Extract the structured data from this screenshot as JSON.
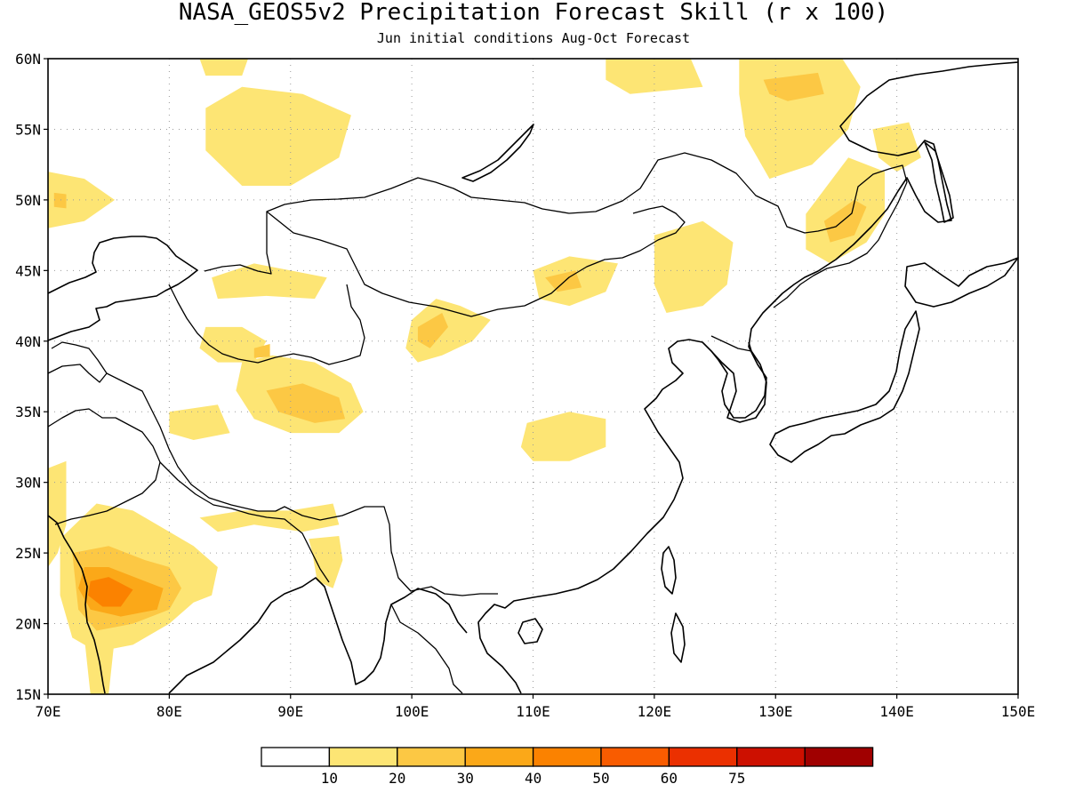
{
  "title": "NASA_GEOS5v2 Precipitation Forecast Skill (r x 100)",
  "subtitle": "Jun initial conditions  Aug-Oct Forecast",
  "map": {
    "lon_range": [
      70,
      150
    ],
    "lat_range": [
      15,
      60
    ],
    "lon_ticks": [
      {
        "value": 70,
        "label": "70E"
      },
      {
        "value": 80,
        "label": "80E"
      },
      {
        "value": 90,
        "label": "90E"
      },
      {
        "value": 100,
        "label": "100E"
      },
      {
        "value": 110,
        "label": "110E"
      },
      {
        "value": 120,
        "label": "120E"
      },
      {
        "value": 130,
        "label": "130E"
      },
      {
        "value": 140,
        "label": "140E"
      },
      {
        "value": 150,
        "label": "150E"
      }
    ],
    "lat_ticks": [
      {
        "value": 15,
        "label": "15N"
      },
      {
        "value": 20,
        "label": "20N"
      },
      {
        "value": 25,
        "label": "25N"
      },
      {
        "value": 30,
        "label": "30N"
      },
      {
        "value": 35,
        "label": "35N"
      },
      {
        "value": 40,
        "label": "40N"
      },
      {
        "value": 45,
        "label": "45N"
      },
      {
        "value": 50,
        "label": "50N"
      },
      {
        "value": 55,
        "label": "55N"
      },
      {
        "value": 60,
        "label": "60N"
      }
    ],
    "grid": true,
    "skill_regions": [
      {
        "name": "central-india",
        "level": 10,
        "ring": [
          [
            71,
            26
          ],
          [
            74,
            28.5
          ],
          [
            77,
            28
          ],
          [
            79,
            27
          ],
          [
            82,
            25.5
          ],
          [
            84,
            24
          ],
          [
            83.5,
            22
          ],
          [
            82,
            21.5
          ],
          [
            80,
            20
          ],
          [
            77,
            18.5
          ],
          [
            74,
            18
          ],
          [
            72,
            19
          ],
          [
            71,
            22
          ]
        ]
      },
      {
        "name": "central-india",
        "level": 20,
        "ring": [
          [
            72,
            25
          ],
          [
            75,
            25.5
          ],
          [
            78,
            24.5
          ],
          [
            80,
            24
          ],
          [
            81,
            22.5
          ],
          [
            80,
            21
          ],
          [
            77,
            20
          ],
          [
            74,
            19.5
          ],
          [
            72.5,
            21
          ]
        ]
      },
      {
        "name": "central-india",
        "level": 30,
        "ring": [
          [
            73,
            24
          ],
          [
            75,
            24
          ],
          [
            78,
            23
          ],
          [
            79.5,
            22.5
          ],
          [
            79,
            21
          ],
          [
            76,
            20.5
          ],
          [
            73.5,
            21
          ],
          [
            72.5,
            22.5
          ]
        ]
      },
      {
        "name": "central-india",
        "level": 40,
        "ring": [
          [
            73.5,
            23
          ],
          [
            75,
            23.3
          ],
          [
            77,
            22.4
          ],
          [
            76,
            21.2
          ],
          [
            74.5,
            21.2
          ],
          [
            73.3,
            22
          ]
        ]
      },
      {
        "name": "west-coast-india",
        "level": 10,
        "ring": [
          [
            70,
            31
          ],
          [
            71.5,
            31.5
          ],
          [
            71.5,
            27
          ],
          [
            70.8,
            25
          ],
          [
            70,
            24
          ]
        ]
      },
      {
        "name": "south-india-strip",
        "level": 10,
        "ring": [
          [
            73,
            19
          ],
          [
            75.5,
            19
          ],
          [
            75,
            15
          ],
          [
            73.5,
            15
          ]
        ]
      },
      {
        "name": "himalaya-foothills",
        "level": 10,
        "ring": [
          [
            82.5,
            27.5
          ],
          [
            86,
            28
          ],
          [
            90,
            28
          ],
          [
            93.5,
            28.5
          ],
          [
            94,
            27
          ],
          [
            91,
            26.5
          ],
          [
            87,
            27
          ],
          [
            84,
            26.5
          ]
        ]
      },
      {
        "name": "assam",
        "level": 10,
        "ring": [
          [
            91.5,
            26
          ],
          [
            94,
            26.2
          ],
          [
            94.3,
            24.5
          ],
          [
            93.5,
            22.5
          ],
          [
            92.2,
            23
          ],
          [
            91.8,
            25
          ]
        ]
      },
      {
        "name": "tibet-north",
        "level": 10,
        "ring": [
          [
            86,
            38.5
          ],
          [
            88.5,
            39
          ],
          [
            92,
            38.5
          ],
          [
            95,
            37
          ],
          [
            96,
            35
          ],
          [
            94,
            33.5
          ],
          [
            90,
            33.5
          ],
          [
            87,
            34.5
          ],
          [
            85.5,
            36.5
          ]
        ]
      },
      {
        "name": "tibet-north",
        "level": 20,
        "ring": [
          [
            88,
            36.5
          ],
          [
            91,
            37
          ],
          [
            94,
            36
          ],
          [
            94.5,
            34.5
          ],
          [
            92,
            34.2
          ],
          [
            89,
            35
          ]
        ]
      },
      {
        "name": "karakoram",
        "level": 10,
        "ring": [
          [
            80,
            35
          ],
          [
            84,
            35.5
          ],
          [
            85,
            33.5
          ],
          [
            82,
            33
          ],
          [
            80,
            33.5
          ]
        ]
      },
      {
        "name": "tarim-south",
        "level": 10,
        "ring": [
          [
            83,
            41
          ],
          [
            86,
            41
          ],
          [
            88,
            40
          ],
          [
            87,
            38.5
          ],
          [
            84,
            38.5
          ],
          [
            82.5,
            39.5
          ]
        ]
      },
      {
        "name": "tarim-south",
        "level": 20,
        "ring": [
          [
            87,
            39.5
          ],
          [
            88.3,
            39.8
          ],
          [
            88.3,
            38.9
          ],
          [
            87,
            38.8
          ]
        ]
      },
      {
        "name": "tianshan",
        "level": 10,
        "ring": [
          [
            83.5,
            44.5
          ],
          [
            87,
            45.5
          ],
          [
            93,
            44.5
          ],
          [
            92,
            43
          ],
          [
            88,
            43.2
          ],
          [
            84,
            43
          ]
        ]
      },
      {
        "name": "gansu-ningxia",
        "level": 10,
        "ring": [
          [
            100,
            41.5
          ],
          [
            102,
            43
          ],
          [
            104,
            42.5
          ],
          [
            106.5,
            41.5
          ],
          [
            105,
            40
          ],
          [
            102.5,
            39
          ],
          [
            100.5,
            38.5
          ],
          [
            99.5,
            39.5
          ]
        ]
      },
      {
        "name": "gansu-ningxia",
        "level": 20,
        "ring": [
          [
            100.5,
            41
          ],
          [
            102.5,
            42
          ],
          [
            103,
            41
          ],
          [
            101.5,
            39.5
          ],
          [
            100.5,
            40
          ]
        ]
      },
      {
        "name": "north-china",
        "level": 10,
        "ring": [
          [
            110,
            45
          ],
          [
            113,
            46
          ],
          [
            117,
            45.5
          ],
          [
            116,
            43.5
          ],
          [
            113,
            42.5
          ],
          [
            110.5,
            43
          ]
        ]
      },
      {
        "name": "north-china",
        "level": 20,
        "ring": [
          [
            111,
            44.5
          ],
          [
            113.5,
            45
          ],
          [
            114,
            43.8
          ],
          [
            112,
            43.5
          ]
        ]
      },
      {
        "name": "sichuan-basin",
        "level": 10,
        "ring": [
          [
            109.5,
            34.2
          ],
          [
            113,
            35
          ],
          [
            116,
            34.5
          ],
          [
            116,
            32.5
          ],
          [
            113,
            31.5
          ],
          [
            110,
            31.5
          ],
          [
            109,
            32.5
          ]
        ]
      },
      {
        "name": "kazakh-north",
        "level": 10,
        "ring": [
          [
            70,
            52
          ],
          [
            73,
            51.5
          ],
          [
            75.5,
            50
          ],
          [
            73,
            48.5
          ],
          [
            70,
            48
          ]
        ]
      },
      {
        "name": "kazakh-north",
        "level": 20,
        "ring": [
          [
            70.5,
            50.5
          ],
          [
            71.5,
            50.4
          ],
          [
            71.5,
            49.4
          ],
          [
            70.5,
            49.5
          ]
        ]
      },
      {
        "name": "altai-west",
        "level": 10,
        "ring": [
          [
            83,
            56.5
          ],
          [
            86,
            58
          ],
          [
            91,
            57.5
          ],
          [
            95,
            56
          ],
          [
            94,
            53
          ],
          [
            90,
            51
          ],
          [
            86,
            51
          ],
          [
            83,
            53.5
          ]
        ]
      },
      {
        "name": "altai-north",
        "level": 10,
        "ring": [
          [
            82.5,
            60
          ],
          [
            86.5,
            60
          ],
          [
            86,
            58.8
          ],
          [
            83,
            58.8
          ]
        ]
      },
      {
        "name": "yakutia-west",
        "level": 10,
        "ring": [
          [
            116,
            60
          ],
          [
            123,
            60
          ],
          [
            124,
            58
          ],
          [
            118,
            57.5
          ],
          [
            116,
            58.5
          ]
        ]
      },
      {
        "name": "siberia-east",
        "level": 10,
        "ring": [
          [
            127,
            60
          ],
          [
            135.5,
            60
          ],
          [
            137,
            58
          ],
          [
            136,
            55
          ],
          [
            133,
            52.5
          ],
          [
            129.5,
            51.5
          ],
          [
            127.5,
            54.5
          ],
          [
            127,
            57.5
          ]
        ]
      },
      {
        "name": "siberia-east",
        "level": 20,
        "ring": [
          [
            129,
            58.5
          ],
          [
            133.5,
            59
          ],
          [
            134,
            57.5
          ],
          [
            131,
            57
          ],
          [
            129.5,
            57.5
          ]
        ]
      },
      {
        "name": "amur",
        "level": 10,
        "ring": [
          [
            132.5,
            49
          ],
          [
            136,
            53
          ],
          [
            139,
            52
          ],
          [
            139,
            49
          ],
          [
            137.5,
            47
          ],
          [
            134.5,
            45.5
          ],
          [
            132.5,
            46.5
          ]
        ]
      },
      {
        "name": "amur",
        "level": 20,
        "ring": [
          [
            134,
            48.5
          ],
          [
            136.5,
            50
          ],
          [
            137.5,
            49.5
          ],
          [
            136.5,
            47.5
          ],
          [
            134.5,
            47
          ]
        ]
      },
      {
        "name": "manchuria",
        "level": 10,
        "ring": [
          [
            120,
            47.5
          ],
          [
            124,
            48.5
          ],
          [
            126.5,
            47
          ],
          [
            126,
            44
          ],
          [
            124,
            42.5
          ],
          [
            121,
            42
          ],
          [
            120,
            44
          ]
        ]
      },
      {
        "name": "sea-of-okhotsk-east",
        "level": 10,
        "ring": [
          [
            138,
            55
          ],
          [
            141,
            55.5
          ],
          [
            142,
            53
          ],
          [
            140,
            52
          ],
          [
            138.5,
            53
          ]
        ]
      }
    ],
    "region_name_note": ""
  },
  "colorbar": {
    "levels": [
      {
        "color": "#ffffff",
        "label": ""
      },
      {
        "color": "#fde574",
        "label": "10"
      },
      {
        "color": "#fcc844",
        "label": "20"
      },
      {
        "color": "#fba818",
        "label": "30"
      },
      {
        "color": "#fb8200",
        "label": "40"
      },
      {
        "color": "#f95c00",
        "label": "50"
      },
      {
        "color": "#eb3000",
        "label": "60"
      },
      {
        "color": "#cd1000",
        "label": "75"
      },
      {
        "color": "#a00000",
        "label": ""
      }
    ]
  }
}
